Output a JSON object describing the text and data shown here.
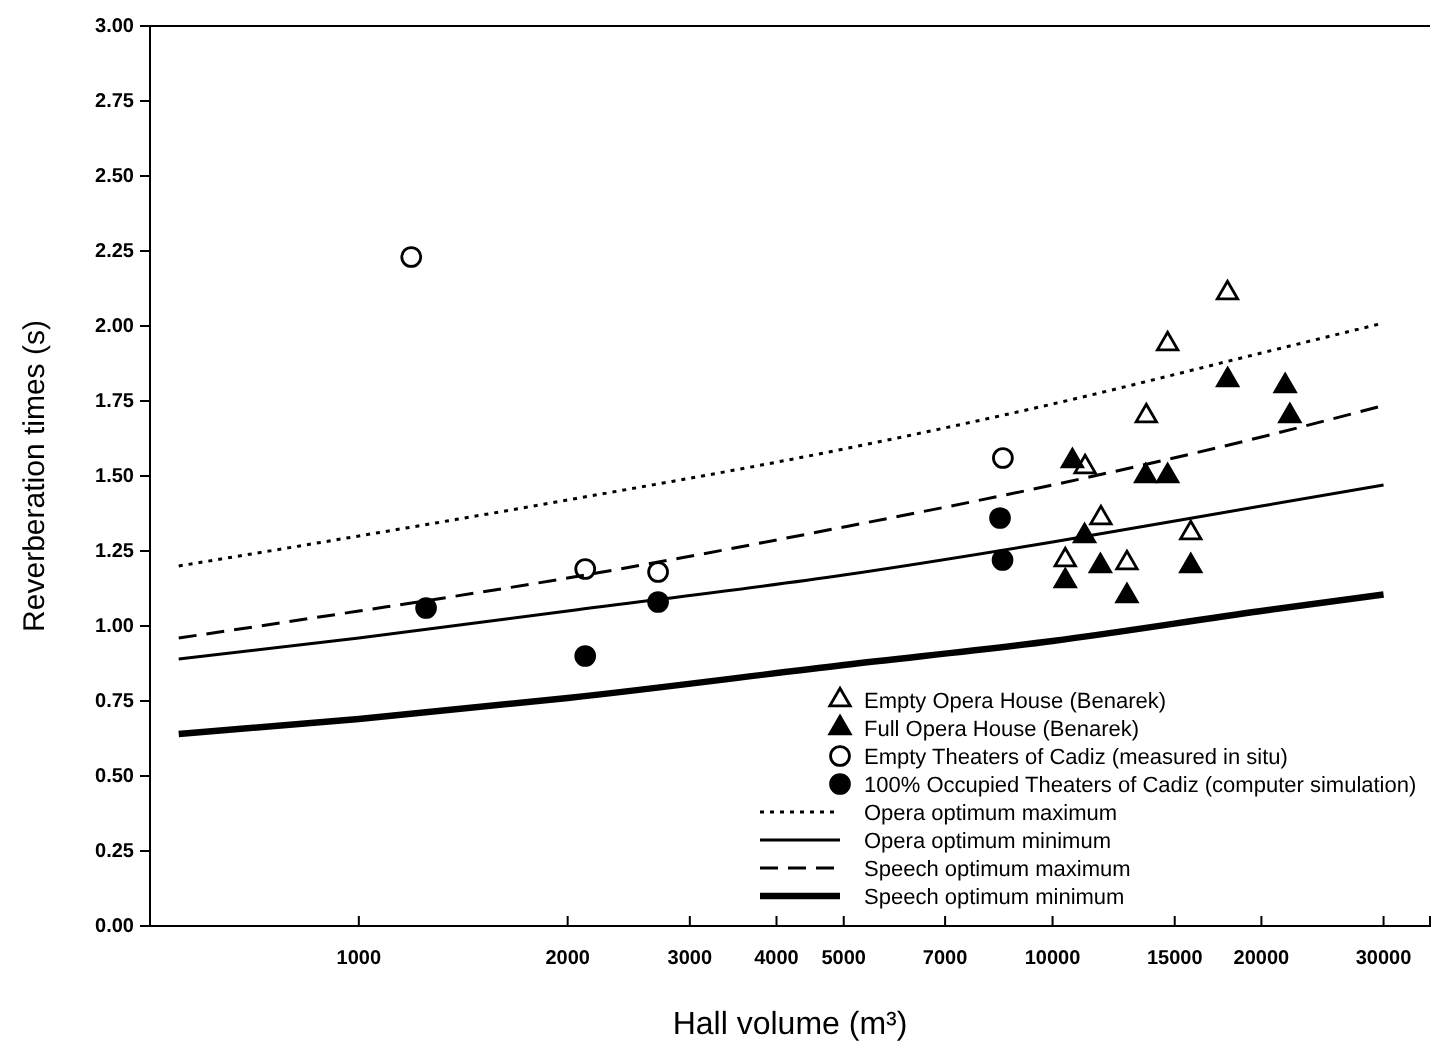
{
  "chart_data": {
    "type": "scatter",
    "xlabel": "Hall volume (m³)",
    "ylabel": "Reverberation times (s)",
    "log": "x",
    "xlim": [
      500,
      35000
    ],
    "xticks": [
      1000,
      2000,
      3000,
      4000,
      5000,
      7000,
      10000,
      15000,
      20000,
      30000
    ],
    "ylim": [
      0,
      3
    ],
    "yticks": [
      {
        "value": 0,
        "label": "0.00"
      },
      {
        "value": 0.25,
        "label": "0.25"
      },
      {
        "value": 0.5,
        "label": "0.50"
      },
      {
        "value": 0.75,
        "label": "0.75"
      },
      {
        "value": 1,
        "label": "1.00"
      },
      {
        "value": 1.25,
        "label": "1.25"
      },
      {
        "value": 1.5,
        "label": "1.50"
      },
      {
        "value": 1.75,
        "label": "1.75"
      },
      {
        "value": 2,
        "label": "2.00"
      },
      {
        "value": 2.25,
        "label": "2.25"
      },
      {
        "value": 2.5,
        "label": "2.50"
      },
      {
        "value": 2.75,
        "label": "2.75"
      },
      {
        "value": 3,
        "label": "3.00"
      }
    ],
    "grid": false,
    "legend": "bottom right",
    "series": [
      {
        "name": "Empty Opera House (Benarek)",
        "marker": "triangle",
        "color": "#ffffff",
        "x": [
          17870,
          14650,
          13650,
          11140,
          11740,
          15820,
          10430,
          12800
        ],
        "values": [
          2.11,
          1.94,
          1.7,
          1.53,
          1.36,
          1.31,
          1.22,
          1.21
        ]
      },
      {
        "name": "Full Opera House (Benarek)",
        "marker": "triangle",
        "color": "#000000",
        "x": [
          17880,
          21640,
          21980,
          10680,
          13620,
          14650,
          11120,
          11720,
          15820,
          10430,
          12800
        ],
        "values": [
          1.82,
          1.8,
          1.7,
          1.55,
          1.5,
          1.5,
          1.3,
          1.2,
          1.2,
          1.15,
          1.1
        ]
      },
      {
        "name": "Empty Theaters of Cadiz (measured in situ)",
        "marker": "circle",
        "color": "#ffffff",
        "x": [
          1190,
          2120,
          2700,
          8480
        ],
        "values": [
          2.23,
          1.19,
          1.18,
          1.56
        ]
      },
      {
        "name": "100% Occupied Theaters of Cadiz (computer simulation)",
        "marker": "circle",
        "color": "#000000",
        "x": [
          1250,
          2120,
          2700,
          8400,
          8470
        ],
        "values": [
          1.06,
          0.9,
          1.08,
          1.36,
          1.22
        ]
      },
      {
        "name": "Opera optimum maximum",
        "type": "line",
        "line_style": "dotted",
        "color": "#000000",
        "x": [
          550,
          1000,
          2000,
          5000,
          10000,
          20000,
          30000
        ],
        "values": [
          1.2,
          1.3,
          1.42,
          1.59,
          1.74,
          1.91,
          2.01
        ]
      },
      {
        "name": "Opera optimum minimum",
        "type": "line",
        "line_style": "solid",
        "color": "#000000",
        "x": [
          550,
          1000,
          2000,
          5000,
          10000,
          20000,
          30000
        ],
        "values": [
          0.89,
          0.96,
          1.05,
          1.17,
          1.28,
          1.4,
          1.47
        ]
      },
      {
        "name": "Speech optimum maximum",
        "type": "line",
        "line_style": "dashed",
        "color": "#000000",
        "x": [
          550,
          1000,
          2000,
          5000,
          10000,
          20000,
          30000
        ],
        "values": [
          0.96,
          1.05,
          1.16,
          1.33,
          1.47,
          1.63,
          1.735
        ]
      },
      {
        "name": "Speech optimum minimum",
        "type": "line",
        "line_style": "solid",
        "color": "#000000",
        "x": [
          550,
          1000,
          2000,
          5000,
          10000,
          20000,
          30000
        ],
        "values": [
          0.64,
          0.69,
          0.76,
          0.87,
          0.95,
          1.05,
          1.105
        ]
      }
    ]
  }
}
